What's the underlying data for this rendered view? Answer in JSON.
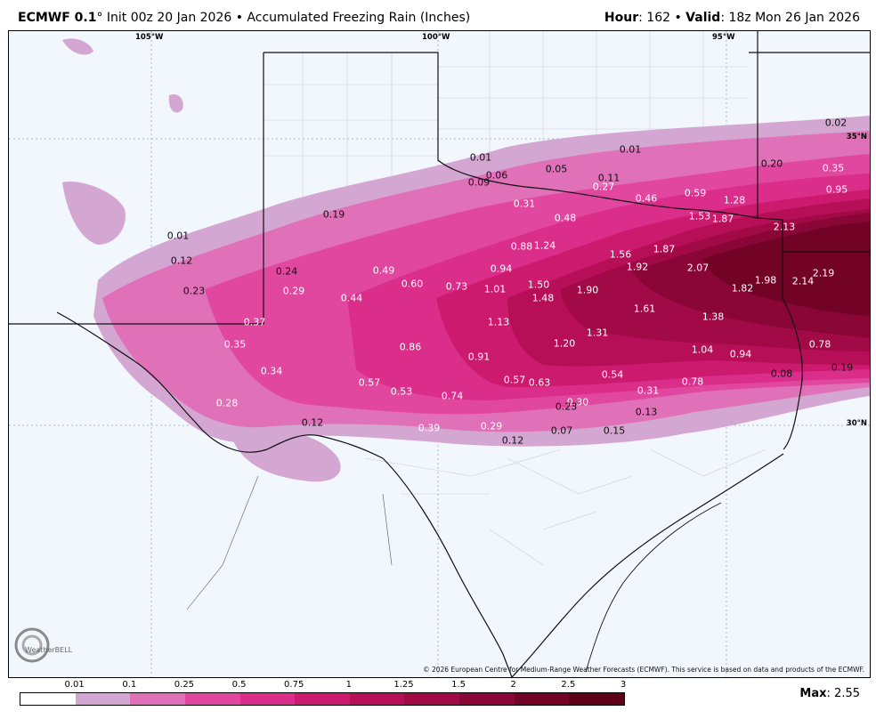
{
  "header": {
    "model": "ECMWF 0.1",
    "degree_symbol": "°",
    "init": " Init 00z 20 Jan 2026 • Accumulated Freezing Rain (Inches)",
    "hour_label": "Hour",
    "hour_value": ": 162 • ",
    "valid_label": "Valid",
    "valid_value": ": 18z Mon 26 Jan 2026"
  },
  "map": {
    "lon_labels": [
      "105°W",
      "100°W",
      "95°W"
    ],
    "lat_labels": [
      "35°N",
      "30°N"
    ],
    "copyright": "© 2026 European Centre for Medium-Range Weather Forecasts (ECMWF). This service is based on data and products of the ECMWF.",
    "logo_text": "WeatherBELL",
    "value_labels": [
      {
        "text": "0.01",
        "color": "dark"
      },
      {
        "text": "0.06",
        "color": "dark"
      },
      {
        "text": "0.05",
        "color": "dark"
      },
      {
        "text": "0.01",
        "color": "dark"
      },
      {
        "text": "0.09",
        "color": "dark"
      },
      {
        "text": "0.11",
        "color": "dark"
      },
      {
        "text": "0.02",
        "color": "dark"
      },
      {
        "text": "0.20",
        "color": "dark"
      },
      {
        "text": "0.35",
        "color": "light"
      },
      {
        "text": "0.27",
        "color": "light"
      },
      {
        "text": "0.46",
        "color": "light"
      },
      {
        "text": "0.59",
        "color": "light"
      },
      {
        "text": "1.28",
        "color": "light"
      },
      {
        "text": "0.95",
        "color": "light"
      },
      {
        "text": "0.31",
        "color": "light"
      },
      {
        "text": "0.48",
        "color": "light"
      },
      {
        "text": "1.53",
        "color": "light"
      },
      {
        "text": "1.87",
        "color": "light"
      },
      {
        "text": "2.13",
        "color": "light"
      },
      {
        "text": "0.19",
        "color": "dark"
      },
      {
        "text": "0.01",
        "color": "dark"
      },
      {
        "text": "1.24",
        "color": "light"
      },
      {
        "text": "0.88",
        "color": "light"
      },
      {
        "text": "1.56",
        "color": "light"
      },
      {
        "text": "1.87",
        "color": "light"
      },
      {
        "text": "0.12",
        "color": "dark"
      },
      {
        "text": "1.92",
        "color": "light"
      },
      {
        "text": "2.07",
        "color": "light"
      },
      {
        "text": "2.19",
        "color": "light"
      },
      {
        "text": "0.24",
        "color": "dark"
      },
      {
        "text": "0.49",
        "color": "light"
      },
      {
        "text": "0.94",
        "color": "light"
      },
      {
        "text": "1.98",
        "color": "light"
      },
      {
        "text": "2.14",
        "color": "light"
      },
      {
        "text": "0.23",
        "color": "dark"
      },
      {
        "text": "0.29",
        "color": "light"
      },
      {
        "text": "0.60",
        "color": "light"
      },
      {
        "text": "0.73",
        "color": "light"
      },
      {
        "text": "1.01",
        "color": "light"
      },
      {
        "text": "1.50",
        "color": "light"
      },
      {
        "text": "1.90",
        "color": "light"
      },
      {
        "text": "1.82",
        "color": "light"
      },
      {
        "text": "0.44",
        "color": "light"
      },
      {
        "text": "1.48",
        "color": "light"
      },
      {
        "text": "1.61",
        "color": "light"
      },
      {
        "text": "1.38",
        "color": "light"
      },
      {
        "text": "0.37",
        "color": "light"
      },
      {
        "text": "1.13",
        "color": "light"
      },
      {
        "text": "1.31",
        "color": "light"
      },
      {
        "text": "0.35",
        "color": "light"
      },
      {
        "text": "0.86",
        "color": "light"
      },
      {
        "text": "1.20",
        "color": "light"
      },
      {
        "text": "0.78",
        "color": "light"
      },
      {
        "text": "1.04",
        "color": "light"
      },
      {
        "text": "0.94",
        "color": "light"
      },
      {
        "text": "0.91",
        "color": "light"
      },
      {
        "text": "0.19",
        "color": "dark"
      },
      {
        "text": "0.34",
        "color": "light"
      },
      {
        "text": "0.54",
        "color": "light"
      },
      {
        "text": "0.08",
        "color": "dark"
      },
      {
        "text": "0.57",
        "color": "light"
      },
      {
        "text": "0.57",
        "color": "light"
      },
      {
        "text": "0.63",
        "color": "light"
      },
      {
        "text": "0.78",
        "color": "light"
      },
      {
        "text": "0.53",
        "color": "light"
      },
      {
        "text": "0.74",
        "color": "light"
      },
      {
        "text": "0.31",
        "color": "light"
      },
      {
        "text": "0.28",
        "color": "light"
      },
      {
        "text": "0.30",
        "color": "light"
      },
      {
        "text": "0.23",
        "color": "dark"
      },
      {
        "text": "0.13",
        "color": "dark"
      },
      {
        "text": "0.12",
        "color": "dark"
      },
      {
        "text": "0.39",
        "color": "light"
      },
      {
        "text": "0.29",
        "color": "light"
      },
      {
        "text": "0.07",
        "color": "dark"
      },
      {
        "text": "0.15",
        "color": "dark"
      },
      {
        "text": "0.12",
        "color": "dark"
      }
    ]
  },
  "legend": {
    "ticks": [
      "0.01",
      "0.1",
      "0.25",
      "0.5",
      "0.75",
      "1",
      "1.25",
      "1.5",
      "2",
      "2.5",
      "3"
    ],
    "colors": [
      "#ffffff",
      "#d4a7d2",
      "#e070b8",
      "#e2479f",
      "#db2d8a",
      "#cc1a6e",
      "#b60f58",
      "#a10a47",
      "#8a0636",
      "#730326",
      "#5f0019"
    ]
  },
  "max": {
    "label": "Max",
    "value": ": 2.55"
  }
}
